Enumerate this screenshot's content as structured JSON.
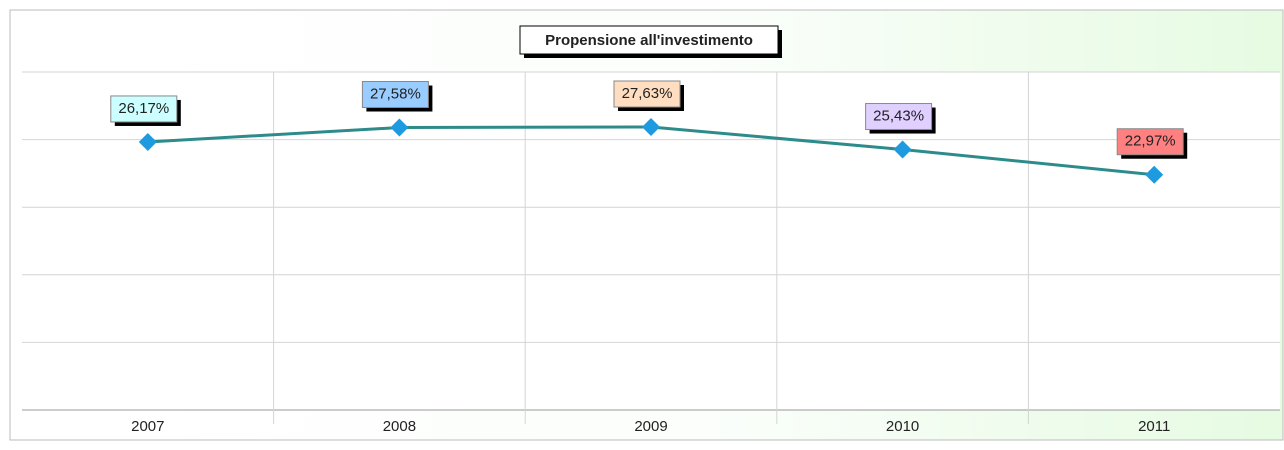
{
  "chart_data": {
    "type": "line",
    "title": "Propensione all'investimento",
    "categories": [
      "2007",
      "2008",
      "2009",
      "2010",
      "2011"
    ],
    "series": [
      {
        "name": "Propensione all'investimento",
        "color": "#2e8b8b",
        "marker_color": "#1e9be0",
        "values": [
          26.17,
          27.58,
          27.63,
          25.43,
          22.97
        ],
        "value_labels": [
          "26,17%",
          "27,58%",
          "27,63%",
          "25,43%",
          "22,97%"
        ],
        "label_colors": [
          "#ccffff",
          "#99ccff",
          "#ffddc0",
          "#e0d0ff",
          "#ff8080"
        ]
      }
    ],
    "ylim": [
      0,
      33
    ],
    "yticks": [
      0,
      6.6,
      13.2,
      19.8,
      26.4,
      33
    ],
    "ytick_labels": false,
    "grid": true,
    "legend": false
  }
}
